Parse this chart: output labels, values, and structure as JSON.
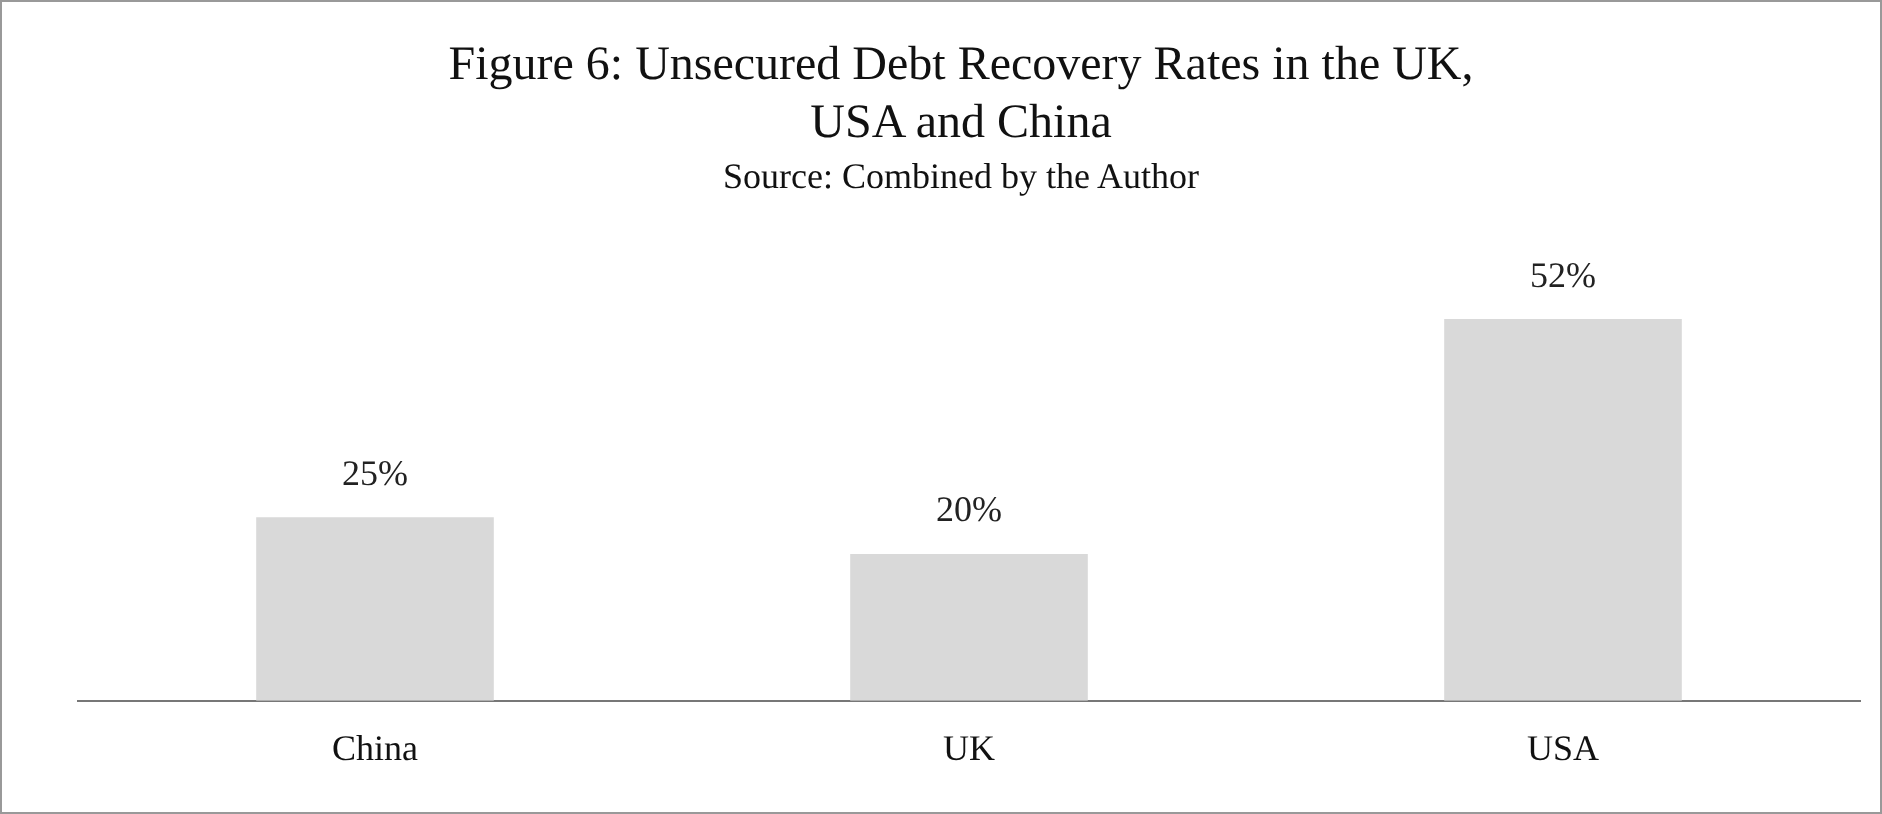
{
  "chart_data": {
    "type": "bar",
    "title": [
      "Figure 6: Unsecured Debt Recovery Rates in the UK,",
      "USA and China"
    ],
    "subtitle": "Source: Combined by the Author",
    "categories": [
      "China",
      "UK",
      "USA"
    ],
    "values": [
      25,
      20,
      52
    ],
    "value_labels": [
      "25%",
      "20%",
      "52%"
    ],
    "color": "#d9d9d9",
    "grid": false,
    "legend": false
  }
}
